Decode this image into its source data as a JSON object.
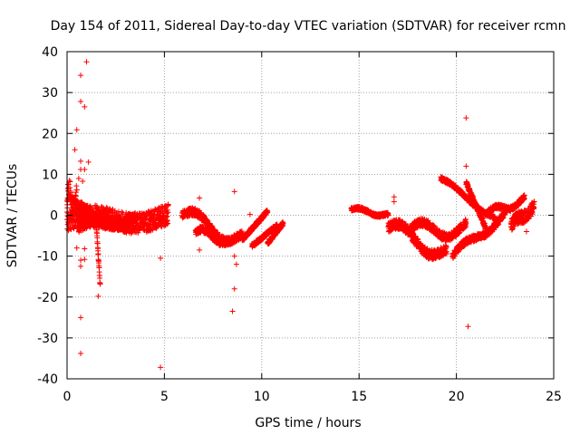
{
  "chart_data": {
    "type": "scatter",
    "title": "Day 154 of 2011, Sidereal Day-to-day VTEC variation (SDTVAR) for receiver rcmn",
    "xlabel": "GPS time / hours",
    "ylabel": "SDTVAR / TECUs",
    "xlim": [
      0,
      25
    ],
    "ylim": [
      -40,
      40
    ],
    "xticks": [
      0,
      5,
      10,
      15,
      20,
      25
    ],
    "yticks": [
      -40,
      -30,
      -20,
      -10,
      0,
      10,
      20,
      30,
      40
    ],
    "grid": true,
    "marker": "+",
    "color": "#ff0000",
    "series": [
      {
        "name": "SDTVAR",
        "tracks": [
          {
            "x0": 0.0,
            "x1": 0.5,
            "y0": 3.5,
            "y1": 4.5,
            "amp": 2.5,
            "spread": 2.5
          },
          {
            "x0": 0.0,
            "x1": 5.2,
            "y0": -1.5,
            "y1": -0.5,
            "amp": 1.2,
            "spread": 2.5
          },
          {
            "x0": 0.3,
            "x1": 2.0,
            "y0": 1.5,
            "y1": -0.5,
            "amp": 1.0,
            "spread": 1.5
          },
          {
            "x0": 0.6,
            "x1": 3.5,
            "y0": -3.0,
            "y1": -1.0,
            "amp": 0.8,
            "spread": 1.2
          },
          {
            "x0": 1.5,
            "x1": 1.7,
            "y0": -2.0,
            "y1": -17.0,
            "amp": 0.0,
            "spread": 0.6
          },
          {
            "x0": 5.9,
            "x1": 9.0,
            "y0": 0.0,
            "y1": -6.0,
            "amp": 2.0,
            "spread": 1.0
          },
          {
            "x0": 6.6,
            "x1": 8.5,
            "y0": -4.0,
            "y1": -6.5,
            "amp": 1.0,
            "spread": 0.8
          },
          {
            "x0": 9.0,
            "x1": 10.3,
            "y0": -6.0,
            "y1": 1.0,
            "amp": 0.0,
            "spread": 0.5
          },
          {
            "x0": 9.5,
            "x1": 10.8,
            "y0": -7.5,
            "y1": -2.5,
            "amp": 0.0,
            "spread": 0.5
          },
          {
            "x0": 10.3,
            "x1": 11.1,
            "y0": -7.0,
            "y1": -2.0,
            "amp": 0.0,
            "spread": 0.5
          },
          {
            "x0": 14.6,
            "x1": 16.5,
            "y0": 1.5,
            "y1": 0.0,
            "amp": 0.5,
            "spread": 0.4
          },
          {
            "x0": 16.5,
            "x1": 19.5,
            "y0": -3.0,
            "y1": -9.5,
            "amp": 2.0,
            "spread": 1.2
          },
          {
            "x0": 17.5,
            "x1": 20.5,
            "y0": -4.0,
            "y1": -3.0,
            "amp": 2.0,
            "spread": 1.0
          },
          {
            "x0": 19.2,
            "x1": 22.0,
            "y0": 9.0,
            "y1": -1.0,
            "amp": 0.5,
            "spread": 0.5
          },
          {
            "x0": 19.8,
            "x1": 22.5,
            "y0": -10.0,
            "y1": 0.0,
            "amp": 1.0,
            "spread": 0.8
          },
          {
            "x0": 20.5,
            "x1": 21.5,
            "y0": 8.0,
            "y1": -3.0,
            "amp": 0.0,
            "spread": 0.5
          },
          {
            "x0": 21.5,
            "x1": 23.5,
            "y0": 0.0,
            "y1": 4.0,
            "amp": 1.0,
            "spread": 0.6
          },
          {
            "x0": 22.8,
            "x1": 24.0,
            "y0": -2.5,
            "y1": 2.0,
            "amp": 0.5,
            "spread": 1.5
          }
        ],
        "outliers": [
          [
            1.0,
            37.5
          ],
          [
            0.7,
            34.2
          ],
          [
            0.7,
            27.8
          ],
          [
            0.9,
            26.5
          ],
          [
            0.5,
            20.9
          ],
          [
            0.4,
            16.0
          ],
          [
            0.7,
            13.2
          ],
          [
            1.1,
            13.0
          ],
          [
            0.7,
            11.2
          ],
          [
            0.9,
            11.2
          ],
          [
            0.6,
            9.0
          ],
          [
            0.8,
            8.3
          ],
          [
            0.5,
            -8.0
          ],
          [
            0.9,
            -8.2
          ],
          [
            0.7,
            -11.0
          ],
          [
            0.9,
            -10.8
          ],
          [
            0.7,
            -12.5
          ],
          [
            1.6,
            -19.8
          ],
          [
            0.7,
            -25.0
          ],
          [
            0.7,
            -33.8
          ],
          [
            4.8,
            -10.5
          ],
          [
            4.8,
            -37.2
          ],
          [
            6.8,
            4.2
          ],
          [
            6.8,
            -8.5
          ],
          [
            8.6,
            5.8
          ],
          [
            8.6,
            -10.0
          ],
          [
            8.7,
            -12.0
          ],
          [
            8.6,
            -18.0
          ],
          [
            8.5,
            -23.5
          ],
          [
            9.4,
            0.2
          ],
          [
            16.8,
            4.5
          ],
          [
            16.8,
            3.3
          ],
          [
            20.5,
            23.8
          ],
          [
            20.5,
            12.0
          ],
          [
            20.6,
            -27.2
          ],
          [
            23.6,
            -4.0
          ]
        ]
      }
    ]
  }
}
